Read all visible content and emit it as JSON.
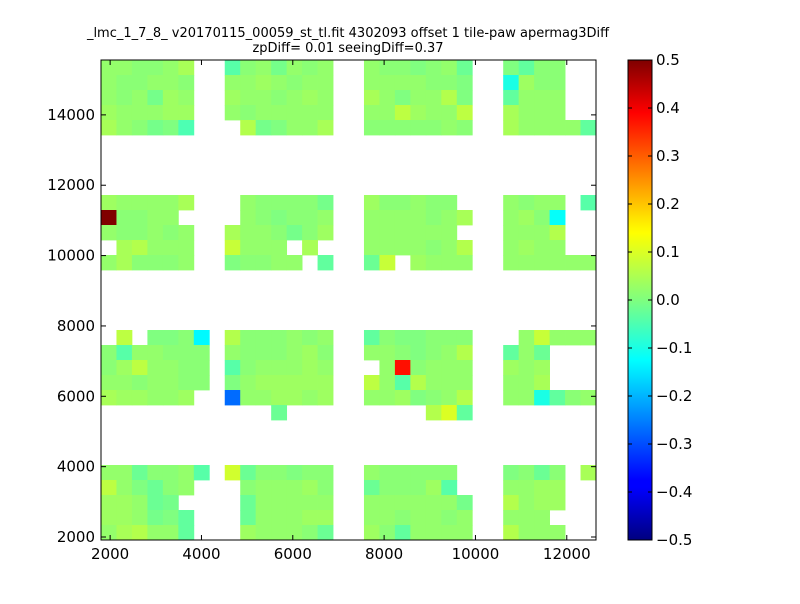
{
  "chart_data": {
    "type": "heatmap",
    "title": "_lmc_1_7_8_ v20170115_00059_st_tl.fit 4302093 offset 1 tile-paw apermag3Diff",
    "subtitle": "zpDiff= 0.01 seeingDiff=0.37",
    "xlabel": "",
    "ylabel": "",
    "xlim": [
      1800,
      12640
    ],
    "ylim": [
      1915,
      15560
    ],
    "x_ticks": [
      2000,
      4000,
      6000,
      8000,
      10000,
      12000
    ],
    "y_ticks": [
      2000,
      4000,
      6000,
      8000,
      10000,
      12000,
      14000
    ],
    "colormap": "jet",
    "color_range": [
      -0.5,
      0.5
    ],
    "colorbar_ticks": [
      0.5,
      0.4,
      0.3,
      0.2,
      0.1,
      0.0,
      -0.1,
      -0.2,
      -0.3,
      -0.4,
      -0.5
    ],
    "colorbar_tick_labels": [
      "0.5",
      "0.4",
      "0.3",
      "0.2",
      "0.1",
      "0.0",
      "−0.1",
      "−0.2",
      "−0.3",
      "−0.4",
      "−0.5"
    ],
    "grid": false,
    "grid_shape": [
      32,
      32
    ],
    "row_order": "top-to-bottom",
    "values": [
      [
        0.02,
        0.02,
        0.01,
        0.01,
        0.02,
        0.04,
        null,
        null,
        -0.04,
        0.01,
        0.02,
        -0.01,
        0.02,
        0.01,
        0.02,
        null,
        null,
        0.02,
        0.01,
        0.01,
        0.0,
        0.01,
        0.02,
        -0.02,
        null,
        null,
        0.0,
        -0.03,
        0.01,
        0.01,
        null,
        null
      ],
      [
        0.02,
        0.01,
        0.01,
        0.02,
        0.02,
        0.01,
        null,
        null,
        0.02,
        0.02,
        0.03,
        0.02,
        0.01,
        0.02,
        0.02,
        null,
        null,
        0.02,
        0.02,
        0.02,
        0.02,
        0.01,
        0.01,
        0.0,
        null,
        null,
        -0.1,
        0.03,
        0.01,
        0.01,
        null,
        null
      ],
      [
        0.02,
        0.01,
        0.02,
        -0.01,
        0.03,
        0.02,
        null,
        null,
        0.03,
        0.02,
        0.02,
        0.01,
        0.02,
        0.03,
        0.02,
        null,
        null,
        0.04,
        0.02,
        0.0,
        0.02,
        0.02,
        0.05,
        0.0,
        null,
        null,
        -0.03,
        0.02,
        0.02,
        0.02,
        null,
        null
      ],
      [
        0.03,
        0.02,
        0.02,
        0.02,
        0.03,
        0.03,
        null,
        null,
        0.02,
        0.01,
        0.02,
        0.02,
        0.02,
        0.02,
        0.02,
        null,
        null,
        0.02,
        0.02,
        0.06,
        0.03,
        0.02,
        0.02,
        0.06,
        null,
        null,
        0.04,
        0.02,
        0.02,
        0.02,
        null,
        null
      ],
      [
        0.04,
        0.02,
        0.01,
        -0.01,
        0.0,
        -0.05,
        null,
        null,
        null,
        0.05,
        -0.01,
        0.0,
        0.02,
        0.02,
        0.04,
        null,
        null,
        0.01,
        0.01,
        0.01,
        0.01,
        0.01,
        0.02,
        0.01,
        null,
        null,
        0.04,
        0.02,
        0.02,
        0.02,
        0.02,
        -0.03
      ],
      [
        null,
        null,
        null,
        null,
        null,
        null,
        null,
        null,
        null,
        null,
        null,
        null,
        null,
        null,
        null,
        null,
        null,
        null,
        null,
        null,
        null,
        null,
        null,
        null,
        null,
        null,
        null,
        null,
        null,
        null,
        null,
        null
      ],
      [
        null,
        null,
        null,
        null,
        null,
        null,
        null,
        null,
        null,
        null,
        null,
        null,
        null,
        null,
        null,
        null,
        null,
        null,
        null,
        null,
        null,
        null,
        null,
        null,
        null,
        null,
        null,
        null,
        null,
        null,
        null,
        null
      ],
      [
        null,
        null,
        null,
        null,
        null,
        null,
        null,
        null,
        null,
        null,
        null,
        null,
        null,
        null,
        null,
        null,
        null,
        null,
        null,
        null,
        null,
        null,
        null,
        null,
        null,
        null,
        null,
        null,
        null,
        null,
        null,
        null
      ],
      [
        null,
        null,
        null,
        null,
        null,
        null,
        null,
        null,
        null,
        null,
        null,
        null,
        null,
        null,
        null,
        null,
        null,
        null,
        null,
        null,
        null,
        null,
        null,
        null,
        null,
        null,
        null,
        null,
        null,
        null,
        null,
        null
      ],
      [
        0.03,
        0.02,
        0.02,
        0.02,
        0.02,
        0.04,
        null,
        null,
        null,
        0.02,
        0.01,
        0.01,
        0.01,
        0.01,
        -0.01,
        null,
        null,
        0.03,
        0.01,
        0.01,
        0.02,
        0.01,
        0.01,
        null,
        null,
        null,
        0.02,
        0.01,
        0.02,
        0.02,
        null,
        -0.04
      ],
      [
        0.5,
        0.01,
        0.01,
        0.02,
        0.02,
        null,
        null,
        null,
        null,
        0.02,
        0.01,
        0.0,
        0.01,
        0.01,
        0.02,
        null,
        null,
        0.02,
        0.02,
        0.02,
        0.02,
        0.01,
        0.02,
        0.04,
        null,
        null,
        0.02,
        0.03,
        0.01,
        -0.12,
        null,
        null
      ],
      [
        0.02,
        0.01,
        0.01,
        0.02,
        0.01,
        0.02,
        null,
        null,
        0.04,
        0.02,
        0.02,
        0.01,
        -0.01,
        0.01,
        0.03,
        null,
        null,
        0.02,
        0.02,
        0.02,
        0.02,
        0.02,
        0.02,
        null,
        null,
        null,
        0.02,
        0.02,
        0.02,
        0.05,
        null,
        null
      ],
      [
        null,
        0.04,
        0.05,
        0.02,
        0.02,
        0.02,
        null,
        null,
        0.07,
        0.02,
        0.02,
        0.02,
        null,
        0.04,
        null,
        null,
        null,
        0.02,
        0.02,
        0.02,
        0.02,
        0.01,
        0.02,
        0.05,
        null,
        null,
        0.02,
        0.03,
        0.02,
        0.02,
        null,
        null
      ],
      [
        0.02,
        0.04,
        0.01,
        0.01,
        0.01,
        0.02,
        null,
        null,
        0.0,
        0.01,
        0.01,
        0.02,
        0.02,
        null,
        -0.03,
        null,
        null,
        -0.02,
        0.07,
        null,
        0.03,
        0.02,
        0.02,
        0.02,
        null,
        null,
        0.02,
        0.02,
        0.02,
        0.02,
        0.02,
        0.02
      ],
      [
        null,
        null,
        null,
        null,
        null,
        null,
        null,
        null,
        null,
        null,
        null,
        null,
        null,
        null,
        null,
        null,
        null,
        null,
        null,
        null,
        null,
        null,
        null,
        null,
        null,
        null,
        null,
        null,
        null,
        null,
        null,
        null
      ],
      [
        null,
        null,
        null,
        null,
        null,
        null,
        null,
        null,
        null,
        null,
        null,
        null,
        null,
        null,
        null,
        null,
        null,
        null,
        null,
        null,
        null,
        null,
        null,
        null,
        null,
        null,
        null,
        null,
        null,
        null,
        null,
        null
      ],
      [
        null,
        null,
        null,
        null,
        null,
        null,
        null,
        null,
        null,
        null,
        null,
        null,
        null,
        null,
        null,
        null,
        null,
        null,
        null,
        null,
        null,
        null,
        null,
        null,
        null,
        null,
        null,
        null,
        null,
        null,
        null,
        null
      ],
      [
        null,
        null,
        null,
        null,
        null,
        null,
        null,
        null,
        null,
        null,
        null,
        null,
        null,
        null,
        null,
        null,
        null,
        null,
        null,
        null,
        null,
        null,
        null,
        null,
        null,
        null,
        null,
        null,
        null,
        null,
        null,
        null
      ],
      [
        null,
        0.06,
        null,
        0.0,
        0.0,
        0.01,
        -0.13,
        null,
        0.05,
        0.01,
        0.01,
        0.01,
        0.02,
        0.01,
        0.02,
        null,
        null,
        -0.03,
        0.01,
        0.0,
        0.0,
        0.01,
        0.01,
        0.01,
        null,
        null,
        null,
        0.02,
        0.07,
        0.02,
        0.02,
        0.02
      ],
      [
        0.01,
        -0.04,
        0.02,
        0.02,
        0.01,
        0.01,
        0.01,
        null,
        0.02,
        0.01,
        0.01,
        0.01,
        0.02,
        0.03,
        0.01,
        null,
        null,
        0.02,
        0.02,
        0.01,
        0.0,
        0.01,
        0.02,
        0.05,
        null,
        null,
        -0.03,
        0.02,
        -0.02,
        null,
        null,
        null
      ],
      [
        0.01,
        0.03,
        0.06,
        0.02,
        0.02,
        0.01,
        0.01,
        null,
        -0.04,
        0.01,
        0.02,
        0.02,
        0.02,
        0.03,
        0.02,
        null,
        null,
        null,
        0.02,
        0.36,
        0.01,
        0.02,
        0.02,
        0.02,
        null,
        null,
        0.03,
        0.02,
        0.03,
        null,
        null,
        null
      ],
      [
        0.02,
        0.02,
        0.01,
        0.02,
        0.02,
        0.01,
        0.01,
        null,
        0.0,
        0.02,
        0.03,
        0.03,
        0.03,
        0.03,
        0.03,
        null,
        null,
        0.06,
        0.02,
        -0.04,
        0.05,
        0.02,
        0.02,
        0.02,
        null,
        null,
        0.02,
        0.02,
        0.04,
        null,
        null,
        null
      ],
      [
        0.04,
        0.03,
        0.03,
        0.02,
        0.02,
        0.03,
        null,
        null,
        -0.27,
        0.02,
        0.02,
        0.03,
        0.03,
        0.02,
        0.03,
        null,
        null,
        0.02,
        0.02,
        0.03,
        0.0,
        0.01,
        0.02,
        0.05,
        null,
        null,
        0.02,
        0.02,
        -0.1,
        -0.03,
        0.01,
        0.02
      ],
      [
        null,
        null,
        null,
        null,
        null,
        null,
        null,
        null,
        null,
        null,
        null,
        -0.02,
        null,
        null,
        null,
        null,
        null,
        null,
        null,
        null,
        null,
        0.05,
        0.09,
        -0.03,
        null,
        null,
        null,
        null,
        null,
        null,
        null,
        null
      ],
      [
        null,
        null,
        null,
        null,
        null,
        null,
        null,
        null,
        null,
        null,
        null,
        null,
        null,
        null,
        null,
        null,
        null,
        null,
        null,
        null,
        null,
        null,
        null,
        null,
        null,
        null,
        null,
        null,
        null,
        null,
        null,
        null
      ],
      [
        null,
        null,
        null,
        null,
        null,
        null,
        null,
        null,
        null,
        null,
        null,
        null,
        null,
        null,
        null,
        null,
        null,
        null,
        null,
        null,
        null,
        null,
        null,
        null,
        null,
        null,
        null,
        null,
        null,
        null,
        null,
        null
      ],
      [
        null,
        null,
        null,
        null,
        null,
        null,
        null,
        null,
        null,
        null,
        null,
        null,
        null,
        null,
        null,
        null,
        null,
        null,
        null,
        null,
        null,
        null,
        null,
        null,
        null,
        null,
        null,
        null,
        null,
        null,
        null,
        null
      ],
      [
        0.02,
        0.02,
        -0.02,
        0.01,
        0.01,
        0.02,
        -0.04,
        null,
        0.08,
        -0.02,
        0.01,
        0.01,
        0.0,
        0.01,
        0.01,
        null,
        null,
        0.02,
        0.01,
        0.01,
        0.01,
        0.01,
        0.01,
        null,
        null,
        null,
        0.0,
        0.01,
        -0.02,
        0.01,
        null,
        0.04
      ],
      [
        0.06,
        0.02,
        0.0,
        -0.02,
        0.01,
        0.02,
        null,
        null,
        null,
        0.01,
        0.02,
        0.02,
        0.02,
        0.03,
        0.01,
        null,
        null,
        -0.02,
        0.01,
        0.01,
        0.01,
        0.03,
        -0.04,
        null,
        null,
        null,
        0.02,
        0.02,
        0.03,
        0.03,
        null,
        null
      ],
      [
        0.03,
        0.03,
        0.02,
        -0.02,
        -0.01,
        null,
        null,
        null,
        null,
        -0.02,
        0.02,
        0.02,
        0.02,
        0.02,
        0.02,
        null,
        null,
        0.02,
        0.02,
        0.02,
        0.02,
        0.02,
        0.02,
        -0.01,
        null,
        null,
        0.05,
        0.02,
        0.03,
        0.03,
        null,
        null
      ],
      [
        0.03,
        0.03,
        0.02,
        -0.01,
        0.0,
        -0.03,
        null,
        null,
        null,
        -0.02,
        0.02,
        0.02,
        0.02,
        0.03,
        0.03,
        null,
        null,
        0.02,
        0.02,
        0.01,
        0.02,
        0.02,
        0.01,
        0.02,
        null,
        null,
        0.02,
        0.02,
        0.02,
        null,
        null,
        null
      ],
      [
        0.02,
        0.04,
        0.05,
        0.02,
        0.02,
        -0.03,
        null,
        null,
        null,
        0.03,
        0.02,
        0.02,
        0.02,
        0.01,
        -0.02,
        null,
        null,
        0.03,
        0.01,
        -0.03,
        0.02,
        0.02,
        0.02,
        0.02,
        null,
        null,
        0.05,
        0.02,
        0.02,
        0.02,
        null,
        null
      ]
    ]
  }
}
